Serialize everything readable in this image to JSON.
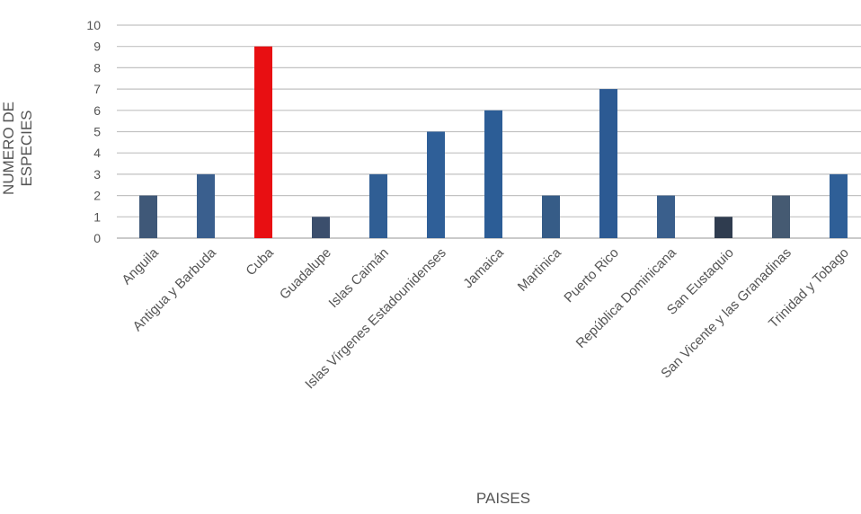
{
  "chart_data": {
    "type": "bar",
    "title": "",
    "xlabel": "PAISES",
    "ylabel": "NUMERO DE ESPECIES",
    "ylim": [
      0,
      10
    ],
    "yticks": [
      0,
      1,
      2,
      3,
      4,
      5,
      6,
      7,
      8,
      9,
      10
    ],
    "grid": true,
    "legend": "none",
    "categories": [
      "Anguila",
      "Antigua y Barbuda",
      "Cuba",
      "Guadalupe",
      "Islas Caimán",
      "Islas Vírgenes Estadounidenses",
      "Jamaica",
      "Martinica",
      "Puerto Rico",
      "República Dominicana",
      "San Eustaquio",
      "San Vicente y las Granadinas",
      "Trinidad y Tobago"
    ],
    "values": [
      2,
      3,
      9,
      1,
      3,
      5,
      6,
      2,
      7,
      2,
      1,
      2,
      3
    ],
    "colors": [
      "#3f5878",
      "#3a5f8e",
      "#e80f12",
      "#3b4e6c",
      "#305e94",
      "#2f5f98",
      "#2c5d96",
      "#365c87",
      "#2c5a93",
      "#3a5f8c",
      "#2f3c4f",
      "#455a72",
      "#2f5f97"
    ]
  }
}
